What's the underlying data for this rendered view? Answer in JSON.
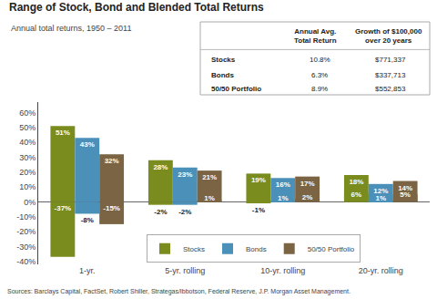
{
  "chart_data": {
    "type": "bar",
    "title": "Range of Stock, Bond and Blended Total Returns",
    "subtitle": "Annual total returns, 1950 – 2011",
    "categories": [
      "1-yr.",
      "5-yr. rolling",
      "10-yr. rolling",
      "20-yr. rolling"
    ],
    "series": [
      {
        "name": "Stocks",
        "color": "#7a8c1e",
        "high": [
          51,
          28,
          19,
          18
        ],
        "high_labels": [
          "51%",
          "28%",
          "19%",
          "18%"
        ],
        "low": [
          -37,
          -2,
          -1,
          6
        ],
        "low_labels": [
          "-37%",
          "-2%",
          "-1%",
          "6%"
        ]
      },
      {
        "name": "Bonds",
        "color": "#4a90b8",
        "high": [
          43,
          23,
          16,
          12
        ],
        "high_labels": [
          "43%",
          "23%",
          "16%",
          "12%"
        ],
        "low": [
          -8,
          -2,
          1,
          1
        ],
        "low_labels": [
          "-8%",
          "-2%",
          "1%",
          "1%"
        ]
      },
      {
        "name": "50/50 Portfolio",
        "color": "#7a6444",
        "high": [
          32,
          21,
          17,
          14
        ],
        "high_labels": [
          "32%",
          "21%",
          "17%",
          "14%"
        ],
        "low": [
          -15,
          1,
          2,
          5
        ],
        "low_labels": [
          "-15%",
          "1%",
          "2%",
          "5%"
        ]
      }
    ],
    "ylim": [
      -42,
      67
    ],
    "yticks": [
      {
        "value": -40,
        "label": "-40%"
      },
      {
        "value": -30,
        "label": "-30%"
      },
      {
        "value": -20,
        "label": "-20%"
      },
      {
        "value": -10,
        "label": "-10%"
      },
      {
        "value": 0,
        "label": "0%"
      },
      {
        "value": 10,
        "label": "10%"
      },
      {
        "value": 20,
        "label": "20%"
      },
      {
        "value": 30,
        "label": "30%"
      },
      {
        "value": 40,
        "label": "40%"
      },
      {
        "value": 50,
        "label": "50%"
      },
      {
        "value": 60,
        "label": "60%"
      }
    ],
    "grid": false,
    "legend": "lower center",
    "data_labels": true,
    "source": "Sources: Barclays Capital, FactSet, Robert Shiller, Strategas/Ibbotson, Federal Reserve, J.P. Morgan Asset Management.",
    "table": {
      "columns": [
        "Annual Avg.\nTotal Return",
        "Growth of $100,000\nover 20 years"
      ],
      "rows": [
        [
          "Stocks",
          "10.8%",
          "$771,337"
        ],
        [
          "Bonds",
          "6.3%",
          "$337,713"
        ],
        [
          "50/50 Portfolio",
          "8.9%",
          "$552,853"
        ]
      ]
    }
  }
}
